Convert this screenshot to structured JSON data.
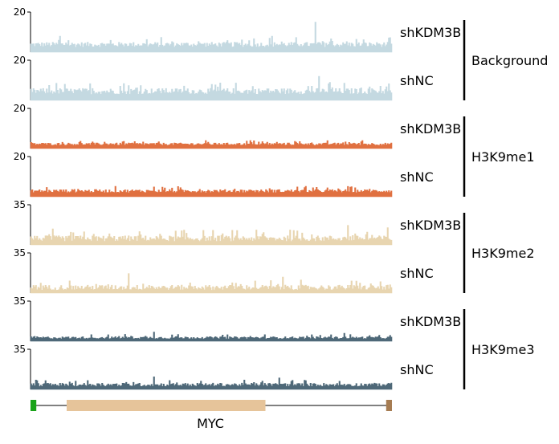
{
  "chart_data": {
    "type": "area",
    "description_free": true,
    "tracks": [
      {
        "sample": "shKDM3B",
        "group": "Background",
        "ymax_label": "20",
        "ylim": [
          0,
          20
        ],
        "color": "#c4d9e1",
        "baseline": 2.5,
        "noise": 2.5,
        "spikes": [
          [
            0.79,
            15
          ],
          [
            0.67,
            8
          ],
          [
            0.08,
            8
          ]
        ]
      },
      {
        "sample": "shNC",
        "group": "Background",
        "ymax_label": "20",
        "ylim": [
          0,
          20
        ],
        "color": "#c4d9e1",
        "baseline": 3.0,
        "noise": 3.0,
        "spikes": [
          [
            0.8,
            12
          ],
          [
            0.83,
            9
          ],
          [
            0.5,
            8
          ]
        ]
      },
      {
        "sample": "shKDM3B",
        "group": "H3K9me1",
        "ymax_label": "20",
        "ylim": [
          0,
          20
        ],
        "color": "#e07040",
        "baseline": 1.6,
        "noise": 1.2,
        "spikes": [
          [
            0.61,
            4
          ],
          [
            0.92,
            4
          ]
        ]
      },
      {
        "sample": "shNC",
        "group": "H3K9me1",
        "ymax_label": "20",
        "ylim": [
          0,
          20
        ],
        "color": "#e07040",
        "baseline": 2.0,
        "noise": 1.6,
        "spikes": [
          [
            0.89,
            5
          ],
          [
            0.9,
            4.5
          ]
        ]
      },
      {
        "sample": "shKDM3B",
        "group": "H3K9me2",
        "ymax_label": "35",
        "ylim": [
          0,
          35
        ],
        "color": "#e8d5b0",
        "baseline": 3.0,
        "noise": 5.0,
        "spikes": [
          [
            0.88,
            17
          ],
          [
            0.72,
            13
          ],
          [
            0.99,
            15
          ],
          [
            0.06,
            14
          ]
        ]
      },
      {
        "sample": "shNC",
        "group": "H3K9me2",
        "ymax_label": "35",
        "ylim": [
          0,
          35
        ],
        "color": "#e8d5b0",
        "baseline": 2.5,
        "noise": 4.5,
        "spikes": [
          [
            0.27,
            17
          ],
          [
            0.7,
            14
          ],
          [
            0.56,
            9
          ]
        ]
      },
      {
        "sample": "shKDM3B",
        "group": "H3K9me3",
        "ymax_label": "35",
        "ylim": [
          0,
          35
        ],
        "color": "#4e6878",
        "baseline": 2.0,
        "noise": 2.0,
        "spikes": [
          [
            0.34,
            8
          ],
          [
            0.26,
            6
          ],
          [
            0.87,
            7
          ]
        ]
      },
      {
        "sample": "shNC",
        "group": "H3K9me3",
        "ymax_label": "35",
        "ylim": [
          0,
          35
        ],
        "color": "#4e6878",
        "baseline": 2.5,
        "noise": 3.0,
        "spikes": [
          [
            0.34,
            11
          ],
          [
            0.69,
            10
          ],
          [
            0.76,
            8
          ]
        ]
      }
    ],
    "groups": [
      "Background",
      "H3K9me1",
      "H3K9me2",
      "H3K9me3"
    ],
    "gene": {
      "name": "MYC",
      "start_color": "#1aa31a",
      "body_color": "#e6c49a",
      "end_color": "#a67c52",
      "exons": [
        {
          "start": 0.0,
          "end": 0.016,
          "color": "#1aa31a"
        },
        {
          "start": 0.1,
          "end": 0.65,
          "color": "#e6c49a"
        },
        {
          "start": 0.984,
          "end": 1.0,
          "color": "#a67c52"
        }
      ]
    }
  }
}
